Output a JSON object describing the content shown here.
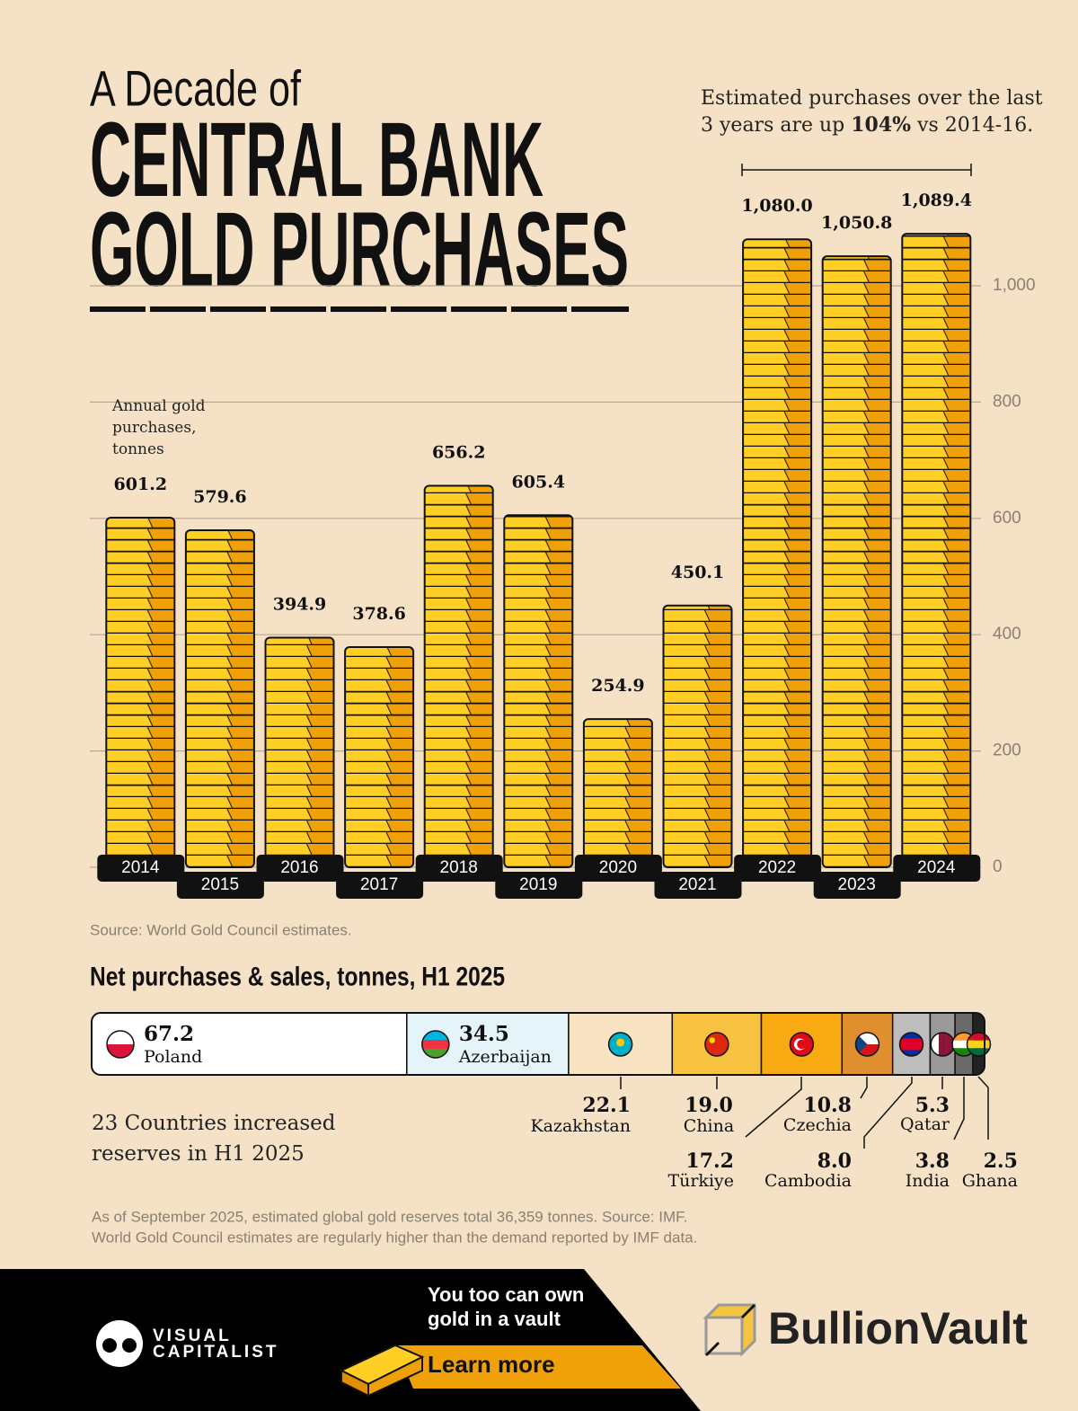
{
  "header": {
    "kicker": "A Decade of",
    "title_lines": [
      "CENTRAL BANK",
      "GOLD PURCHASES"
    ]
  },
  "annotation": {
    "line1": "Estimated purchases over the last",
    "line2": [
      "3 years are up ",
      "104%",
      " vs 2014-16."
    ]
  },
  "chart_data": [
    {
      "type": "bar",
      "y_label": "Annual gold purchases, tonnes",
      "categories": [
        "2014",
        "2015",
        "2016",
        "2017",
        "2018",
        "2019",
        "2020",
        "2021",
        "2022",
        "2023",
        "2024"
      ],
      "values": [
        601.2,
        579.6,
        394.9,
        378.6,
        656.2,
        605.4,
        254.9,
        450.1,
        1080.0,
        1050.8,
        1089.4
      ],
      "value_labels": [
        "601.2",
        "579.6",
        "394.9",
        "378.6",
        "656.2",
        "605.4",
        "254.9",
        "450.1",
        "1,080.0",
        "1,050.8",
        "1,089.4"
      ],
      "color": "#ffcf26",
      "ylim": [
        0,
        1100
      ],
      "yticks": [
        0,
        200,
        400,
        600,
        800,
        {
          "value": 1000,
          "label": "1,000"
        }
      ],
      "grid": true
    },
    {
      "type": "stacked",
      "title": "Net purchases & sales, tonnes, H1 2025",
      "categories": [
        "Poland",
        "Azerbaijan",
        "Kazakhstan",
        "China",
        "Türkiye",
        "Czechia",
        "Cambodia",
        "Qatar",
        "India",
        "Ghana"
      ],
      "values": [
        67.2,
        34.5,
        22.1,
        19.0,
        17.2,
        10.8,
        8.0,
        5.3,
        3.8,
        2.5
      ],
      "value_labels": [
        "67.2",
        "34.5",
        "22.1",
        "19.0",
        "17.2",
        "10.8",
        "8.0",
        "5.3",
        "3.8",
        "2.5"
      ],
      "colors": [
        "#ffffff",
        "#e4f4f8",
        "#f8e3c2",
        "#f7c23f",
        "#f8aa12",
        "#e08f2e",
        "#bdbdbd",
        "#9a9a9a",
        "#6a6a6a",
        "#222222"
      ]
    }
  ],
  "source": "Source: World Gold Council estimates.",
  "summary": "23 Countries increased reserves in H1 2025",
  "footnote": [
    "As of September 2025, estimated global gold reserves total 36,359 tonnes. Source: IMF.",
    "World Gold Council estimates are regularly higher than the demand reported by IMF data."
  ],
  "footer": {
    "brand": [
      "VISUAL",
      "CAPITALIST"
    ],
    "cta": [
      "You too can own",
      "gold in a vault"
    ],
    "button": "Learn more",
    "sponsor": "BullionVault"
  }
}
